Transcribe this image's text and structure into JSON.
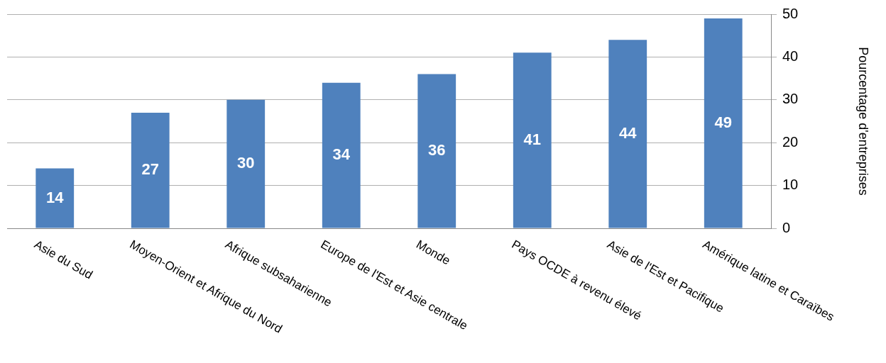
{
  "chart_data": {
    "type": "bar",
    "categories": [
      "Asie du Sud",
      "Moyen-Orient et Afrique du Nord",
      "Afrique subsaharienne",
      "Europe de l'Est et Asie centrale",
      "Monde",
      "Pays OCDE à revenu élevé",
      "Asie de l'Est et Pacifique",
      "Amérique latine et Caraïbes"
    ],
    "values": [
      14,
      27,
      30,
      34,
      36,
      41,
      44,
      49
    ],
    "color": "#4f81bd",
    "ylabel": "Pourcentage d'entreprises",
    "ylim": [
      0,
      50
    ],
    "yticks": [
      0,
      10,
      20,
      30,
      40,
      50
    ],
    "grid": "y",
    "data_labels": true,
    "legend": false
  }
}
